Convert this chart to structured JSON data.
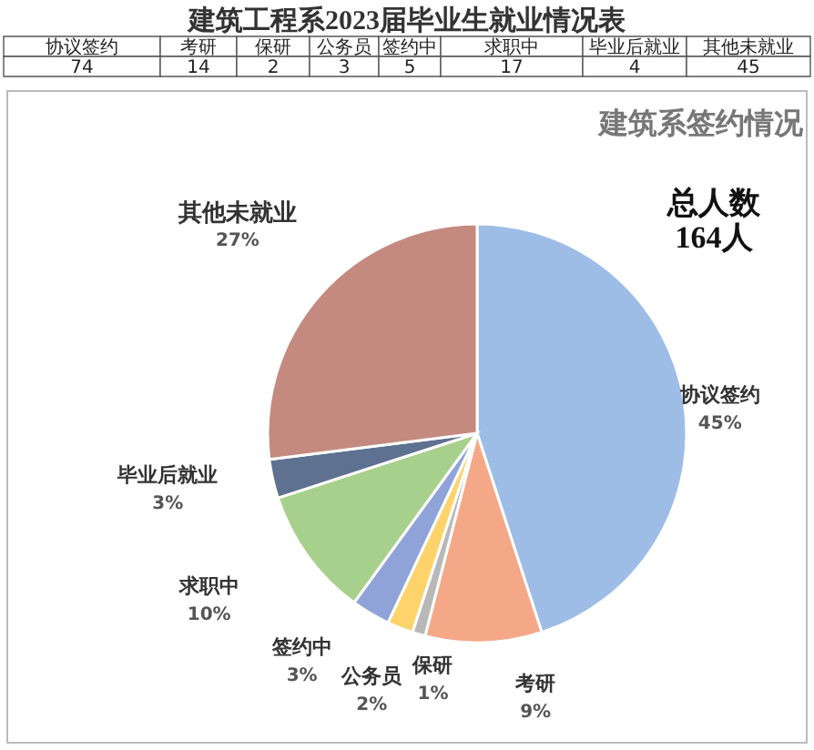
{
  "chart_data": [
    {
      "type": "other",
      "title": "建筑工程系2023届毕业生就业情况表",
      "categories": [
        "协议签约",
        "考研",
        "保研",
        "公务员",
        "签约中",
        "求职中",
        "毕业后就业",
        "其他未就业"
      ],
      "values": [
        74,
        14,
        2,
        3,
        5,
        17,
        4,
        45
      ],
      "data_labels": true
    },
    {
      "type": "pie",
      "title": "建筑系签约情况",
      "categories": [
        "协议签约",
        "考研",
        "保研",
        "公务员",
        "签约中",
        "求职中",
        "毕业后就业",
        "其他未就业"
      ],
      "values": [
        45,
        9,
        1,
        2,
        3,
        10,
        3,
        27
      ],
      "colors": [
        "#9dbde6",
        "#f4a888",
        "#b8b8b8",
        "#ffd36b",
        "#8fa3d9",
        "#a8d08d",
        "#5f7191",
        "#c48a80"
      ],
      "value_labels": [
        "45%",
        "9%",
        "1%",
        "2%",
        "3%",
        "10%",
        "3%",
        "27%"
      ],
      "annotations": [
        "总人数\n164人"
      ]
    }
  ]
}
